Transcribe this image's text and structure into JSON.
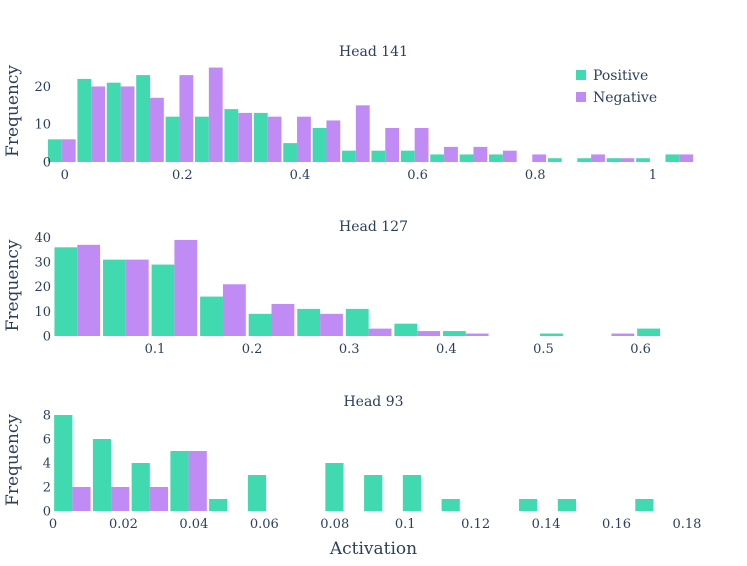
{
  "chart_data": {
    "type": "bar",
    "xlabel": "Activation",
    "ylabel": "Frequency",
    "legend": {
      "placement": "top-right",
      "entries": [
        {
          "name": "Positive",
          "color": "#40d9b0"
        },
        {
          "name": "Negative",
          "color": "#c08bf5"
        }
      ]
    },
    "panels": [
      {
        "title": "Head 141",
        "xlim": [
          -0.02,
          1.07
        ],
        "ylim": [
          0,
          27
        ],
        "xticks": [
          0,
          0.2,
          0.4,
          0.6,
          0.8,
          1
        ],
        "xtick_labels": [
          "0",
          "0.2",
          "0.4",
          "0.6",
          "0.8",
          "1"
        ],
        "yticks": [
          0,
          10,
          20
        ],
        "ytick_labels": [
          "0",
          "10",
          "20"
        ],
        "bin_width": 0.05,
        "bins": [
          -0.005,
          0.045,
          0.095,
          0.145,
          0.195,
          0.245,
          0.295,
          0.345,
          0.395,
          0.445,
          0.495,
          0.545,
          0.595,
          0.645,
          0.695,
          0.745,
          0.795,
          0.845,
          0.895,
          0.945,
          0.995,
          1.045
        ],
        "series": [
          {
            "name": "Positive",
            "values": [
              6,
              22,
              21,
              23,
              12,
              12,
              14,
              13,
              5,
              9,
              3,
              3,
              3,
              2,
              2,
              2,
              0,
              1,
              1,
              1,
              1,
              2
            ]
          },
          {
            "name": "Negative",
            "values": [
              6,
              20,
              20,
              17,
              23,
              25,
              13,
              12,
              12,
              11,
              15,
              9,
              9,
              4,
              4,
              3,
              2,
              0,
              2,
              1,
              0,
              2
            ]
          }
        ]
      },
      {
        "title": "Head 127",
        "xlim": [
          -0.005,
          0.655
        ],
        "ylim": [
          0,
          41
        ],
        "xticks": [
          0.1,
          0.2,
          0.3,
          0.4,
          0.5,
          0.6
        ],
        "xtick_labels": [
          "0.1",
          "0.2",
          "0.3",
          "0.4",
          "0.5",
          "0.6"
        ],
        "yticks": [
          0,
          10,
          20,
          30,
          40
        ],
        "ytick_labels": [
          "0",
          "10",
          "20",
          "30",
          "40"
        ],
        "bin_width": 0.05,
        "bins": [
          0.02,
          0.07,
          0.12,
          0.17,
          0.22,
          0.27,
          0.32,
          0.37,
          0.42,
          0.47,
          0.52,
          0.57,
          0.62
        ],
        "series": [
          {
            "name": "Positive",
            "values": [
              36,
              31,
              29,
              16,
              9,
              11,
              11,
              5,
              2,
              0,
              1,
              0,
              3
            ]
          },
          {
            "name": "Negative",
            "values": [
              37,
              31,
              39,
              21,
              13,
              9,
              3,
              2,
              1,
              0,
              0,
              1,
              0
            ]
          }
        ]
      },
      {
        "title": "Head 93",
        "xlim": [
          0,
          0.182
        ],
        "ylim": [
          0,
          8.5
        ],
        "xticks": [
          0,
          0.02,
          0.04,
          0.06,
          0.08,
          0.1,
          0.12,
          0.14,
          0.16,
          0.18
        ],
        "xtick_labels": [
          "0",
          "0.02",
          "0.04",
          "0.06",
          "0.08",
          "0.1",
          "0.12",
          "0.14",
          "0.16",
          "0.18"
        ],
        "yticks": [
          0,
          2,
          4,
          6,
          8
        ],
        "ytick_labels": [
          "0",
          "2",
          "4",
          "6",
          "8"
        ],
        "bin_width": 0.011,
        "bins": [
          0.0055,
          0.0165,
          0.0275,
          0.0385,
          0.0495,
          0.0605,
          0.0715,
          0.0825,
          0.0935,
          0.1045,
          0.1155,
          0.1265,
          0.1375,
          0.1485,
          0.1595,
          0.1705
        ],
        "series": [
          {
            "name": "Positive",
            "values": [
              8,
              6,
              4,
              5,
              1,
              3,
              0,
              4,
              3,
              3,
              1,
              0,
              1,
              1,
              0,
              1
            ]
          },
          {
            "name": "Negative",
            "values": [
              2,
              2,
              2,
              5,
              0,
              0,
              0,
              0,
              0,
              0,
              0,
              0,
              0,
              0,
              0,
              0
            ]
          }
        ]
      }
    ]
  }
}
